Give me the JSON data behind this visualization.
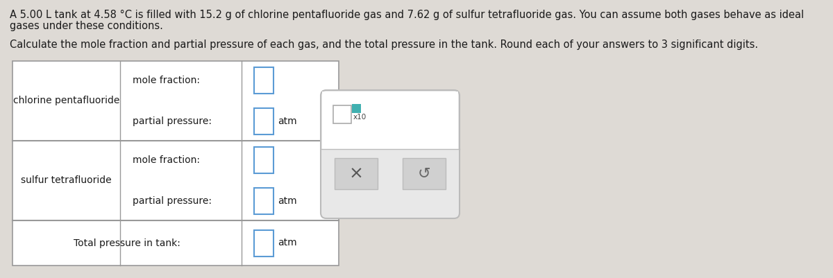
{
  "background_color": "#dedad5",
  "title_text1": "A 5.00 L tank at 4.58 °C is filled with 15.2 g of chlorine pentafluoride gas and 7.62 g of sulfur tetrafluoride gas. You can assume both gases behave as ideal",
  "title_text2": "gases under these conditions.",
  "subtitle_text": "Calculate the mole fraction and partial pressure of each gas, and the total pressure in the tank. Round each of your answers to 3 significant digits.",
  "row1_label": "chlorine pentafluoride",
  "row2_label": "sulfur tetrafluoride",
  "row1_field1_label": "mole fraction:",
  "row1_field2_label": "partial pressure:",
  "row2_field1_label": "mole fraction:",
  "row2_field2_label": "partial pressure:",
  "total_label": "Total pressure in tank:",
  "atm_label": "atm",
  "text_color": "#1a1a1a",
  "table_border_color": "#999999",
  "input_border_color": "#5b9bd5",
  "popup_border_color": "#bbbbbb",
  "popup_bg": "#e8e8e8",
  "popup_top_bg": "#ffffff",
  "btn_bg": "#d0d0d0",
  "x10_box_border": "#aaaaaa",
  "teal_box": "#40b0b0"
}
